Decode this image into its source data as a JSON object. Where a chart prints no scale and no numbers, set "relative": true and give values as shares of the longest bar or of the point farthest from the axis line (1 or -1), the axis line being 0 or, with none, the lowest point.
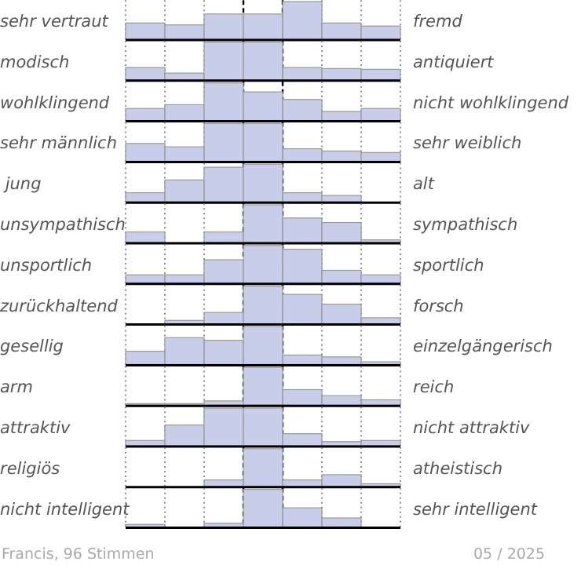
{
  "chart_data": [
    {
      "type": "bar",
      "relative": true,
      "grid": "x",
      "color": "#c5cbe8",
      "categories": [
        null,
        null,
        null,
        null,
        null,
        null,
        null
      ],
      "values": [
        0.43,
        0.38,
        0.67,
        0.67,
        1,
        0.43,
        0.35
      ],
      "annotations": [
        "sehr vertraut",
        "fremd"
      ]
    },
    {
      "type": "bar",
      "relative": true,
      "grid": "x",
      "color": "#c5cbe8",
      "categories": [
        null,
        null,
        null,
        null,
        null,
        null,
        null
      ],
      "values": [
        0.33,
        0.18,
        1,
        1,
        0.33,
        0.3,
        0.28
      ],
      "annotations": [
        "modisch",
        "antiquiert"
      ]
    },
    {
      "type": "bar",
      "relative": true,
      "grid": "x",
      "color": "#c5cbe8",
      "categories": [
        null,
        null,
        null,
        null,
        null,
        null,
        null
      ],
      "values": [
        0.32,
        0.42,
        1,
        0.76,
        0.56,
        0.24,
        0.32
      ],
      "annotations": [
        "wohlklingend",
        "nicht wohlklingend"
      ]
    },
    {
      "type": "bar",
      "relative": true,
      "grid": "x",
      "color": "#c5cbe8",
      "categories": [
        null,
        null,
        null,
        null,
        null,
        null,
        null
      ],
      "values": [
        0.47,
        0.38,
        1,
        1,
        0.33,
        0.27,
        0.23
      ],
      "annotations": [
        "sehr männlich",
        "sehr weiblich"
      ]
    },
    {
      "type": "bar",
      "relative": true,
      "grid": "x",
      "color": "#c5cbe8",
      "categories": [
        null,
        null,
        null,
        null,
        null,
        null,
        null
      ],
      "values": [
        0.24,
        0.58,
        0.92,
        1,
        0.24,
        0.17,
        0
      ],
      "annotations": [
        " jung",
        "alt"
      ]
    },
    {
      "type": "bar",
      "relative": true,
      "grid": "x",
      "color": "#c5cbe8",
      "categories": [
        null,
        null,
        null,
        null,
        null,
        null,
        null
      ],
      "values": [
        0.28,
        0,
        0.28,
        1,
        0.65,
        0.53,
        0.07
      ],
      "annotations": [
        "unsympathisch",
        "sympathisch"
      ]
    },
    {
      "type": "bar",
      "relative": true,
      "grid": "x",
      "color": "#c5cbe8",
      "categories": [
        null,
        null,
        null,
        null,
        null,
        null,
        null
      ],
      "values": [
        0.22,
        0.22,
        0.62,
        1,
        0.9,
        0.34,
        0.22
      ],
      "annotations": [
        "unsportlich",
        "sportlich"
      ]
    },
    {
      "type": "bar",
      "relative": true,
      "grid": "x",
      "color": "#c5cbe8",
      "categories": [
        null,
        null,
        null,
        null,
        null,
        null,
        null
      ],
      "values": [
        null,
        0.09,
        0.3,
        1,
        0.78,
        0.52,
        0.16
      ],
      "annotations": [
        "zurückhaltend",
        "forsch"
      ]
    },
    {
      "type": "bar",
      "relative": true,
      "grid": "x",
      "color": "#c5cbe8",
      "categories": [
        null,
        null,
        null,
        null,
        null,
        null,
        null
      ],
      "values": [
        0.35,
        0.71,
        0.64,
        1,
        0.25,
        0.2,
        0.07
      ],
      "annotations": [
        "gesellig",
        "einzelgängerisch"
      ]
    },
    {
      "type": "bar",
      "relative": true,
      "grid": "x",
      "color": "#c5cbe8",
      "categories": [
        null,
        null,
        null,
        null,
        null,
        null,
        null
      ],
      "values": [
        0.04,
        0.04,
        0.11,
        1,
        0.41,
        0.25,
        0.14
      ],
      "annotations": [
        "arm",
        "reich"
      ]
    },
    {
      "type": "bar",
      "relative": true,
      "grid": "x",
      "color": "#c5cbe8",
      "categories": [
        null,
        null,
        null,
        null,
        null,
        null,
        null
      ],
      "values": [
        0.14,
        0.55,
        1,
        1,
        0.32,
        0.11,
        0.14
      ],
      "annotations": [
        "attraktiv",
        "nicht attraktiv"
      ]
    },
    {
      "type": "bar",
      "relative": true,
      "grid": "x",
      "color": "#c5cbe8",
      "categories": [
        null,
        null,
        null,
        null,
        null,
        null,
        null
      ],
      "values": [
        null,
        null,
        0.17,
        1,
        0.17,
        0.31,
        0.07
      ],
      "annotations": [
        "religiös",
        "atheistisch"
      ]
    },
    {
      "type": "bar",
      "relative": true,
      "grid": "x",
      "color": "#c5cbe8",
      "categories": [
        null,
        null,
        null,
        null,
        null,
        null,
        null
      ],
      "values": [
        0.07,
        null,
        0.1,
        1,
        0.51,
        0.24,
        null
      ],
      "annotations": [
        "nicht intelligent",
        "sehr intelligent"
      ]
    },
    {
      "type": "other",
      "annotations": [
        "Francis, 96 Stimmen",
        "05 / 2025"
      ]
    }
  ]
}
